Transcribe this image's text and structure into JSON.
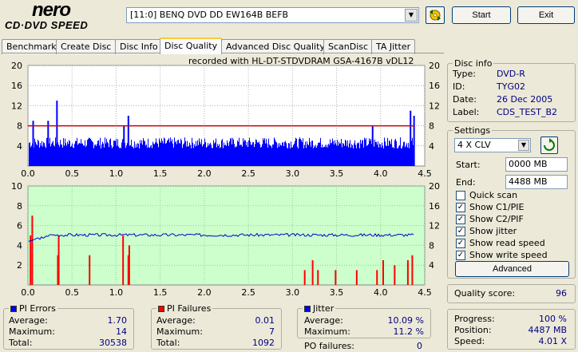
{
  "app": {
    "logo_brand": "nero",
    "logo_sub": "CD·DVD SPEED",
    "drive": "[11:0]  BENQ DVD DD EW164B BEFB",
    "start_label": "Start",
    "exit_label": "Exit"
  },
  "tabs": [
    {
      "label": "Benchmark",
      "active": false
    },
    {
      "label": "Create Disc",
      "active": false
    },
    {
      "label": "Disc Info",
      "active": false
    },
    {
      "label": "Disc Quality",
      "active": true
    },
    {
      "label": "Advanced Disc Quality",
      "active": false
    },
    {
      "label": "ScanDisc",
      "active": false
    },
    {
      "label": "TA Jitter",
      "active": false
    }
  ],
  "recorded_with": "recorded with HL-DT-STDVDRAM GSA-4167B vDL12",
  "disc_info": {
    "title": "Disc info",
    "type_label": "Type:",
    "type": "DVD-R",
    "id_label": "ID:",
    "id": "TYG02",
    "date_label": "Date:",
    "date": "26 Dec 2005",
    "label_label": "Label:",
    "label": "CDS_TEST_B2"
  },
  "settings": {
    "title": "Settings",
    "speed": "4 X CLV",
    "start_label": "Start:",
    "start": "0000 MB",
    "end_label": "End:",
    "end": "4488 MB",
    "checkboxes": [
      {
        "label": "Quick scan",
        "checked": false
      },
      {
        "label": "Show C1/PIE",
        "checked": true
      },
      {
        "label": "Show C2/PIF",
        "checked": true
      },
      {
        "label": "Show jitter",
        "checked": true
      },
      {
        "label": "Show read speed",
        "checked": true
      },
      {
        "label": "Show write speed",
        "checked": true
      }
    ],
    "advanced_label": "Advanced"
  },
  "quality": {
    "label": "Quality score:",
    "value": "96"
  },
  "pi_errors": {
    "title": "PI Errors",
    "color": "#0000ff",
    "avg_label": "Average:",
    "avg": "1.70",
    "max_label": "Maximum:",
    "max": "14",
    "total_label": "Total:",
    "total": "30538"
  },
  "pi_failures": {
    "title": "PI Failures",
    "color": "#ff0000",
    "avg_label": "Average:",
    "avg": "0.01",
    "max_label": "Maximum:",
    "max": "7",
    "total_label": "Total:",
    "total": "1092"
  },
  "jitter": {
    "title": "Jitter",
    "color": "#0000ff",
    "avg_label": "Average:",
    "avg": "10.09 %",
    "max_label": "Maximum:",
    "max": "11.2 %"
  },
  "po_failures": {
    "label": "PO failures:",
    "value": "0"
  },
  "progress": {
    "progress_label": "Progress:",
    "progress": "100 %",
    "position_label": "Position:",
    "position": "4487 MB",
    "speed_label": "Speed:",
    "speed": "4.01 X"
  },
  "chart_data": [
    {
      "type": "bar",
      "name": "PI Errors chart",
      "xlim": [
        0,
        4.5
      ],
      "x_ticks": [
        "0.0",
        "0.5",
        "1.0",
        "1.5",
        "2.0",
        "2.5",
        "3.0",
        "3.5",
        "4.0",
        "4.5"
      ],
      "ylim_left": [
        0,
        20
      ],
      "y_ticks_left": [
        "20",
        "16",
        "12",
        "8",
        "4"
      ],
      "ylim_right": [
        0,
        20
      ],
      "y_ticks_right": [
        "20",
        "16",
        "12",
        "8",
        "4"
      ],
      "series_color": "#0000ff",
      "speed_line_y": 8,
      "x_end": 4.38,
      "spikes": [
        [
          0.32,
          13
        ],
        [
          0.22,
          9
        ],
        [
          1.13,
          10
        ],
        [
          1.08,
          8
        ],
        [
          4.33,
          11
        ],
        [
          4.37,
          10
        ],
        [
          3.9,
          8
        ],
        [
          0.05,
          9
        ]
      ],
      "base_pie": 3.5
    },
    {
      "type": "bar",
      "name": "PI Failures chart",
      "xlim": [
        0,
        4.5
      ],
      "x_ticks": [
        "0.0",
        "0.5",
        "1.0",
        "1.5",
        "2.0",
        "2.5",
        "3.0",
        "3.5",
        "4.0",
        "4.5"
      ],
      "ylim_left": [
        0,
        10
      ],
      "y_ticks_left": [
        "10",
        "8",
        "6",
        "4",
        "2"
      ],
      "ylim_right": [
        0,
        20
      ],
      "y_ticks_right": [
        "20",
        "16",
        "12",
        "8",
        "4"
      ],
      "series_color": "#ff0000",
      "jitter_level": 10.1,
      "x_end": 4.38,
      "pif_spikes": [
        [
          0.02,
          5
        ],
        [
          0.04,
          7
        ],
        [
          0.34,
          5
        ],
        [
          0.33,
          3
        ],
        [
          0.69,
          3
        ],
        [
          1.07,
          5
        ],
        [
          1.14,
          4
        ],
        [
          1.13,
          3
        ],
        [
          3.13,
          1.5
        ],
        [
          3.22,
          2.5
        ],
        [
          3.28,
          1.5
        ],
        [
          3.48,
          1.5
        ],
        [
          3.72,
          1.5
        ],
        [
          3.95,
          1.5
        ],
        [
          4.02,
          2.5
        ],
        [
          4.15,
          2
        ],
        [
          4.3,
          2.5
        ],
        [
          4.35,
          3
        ]
      ]
    }
  ]
}
